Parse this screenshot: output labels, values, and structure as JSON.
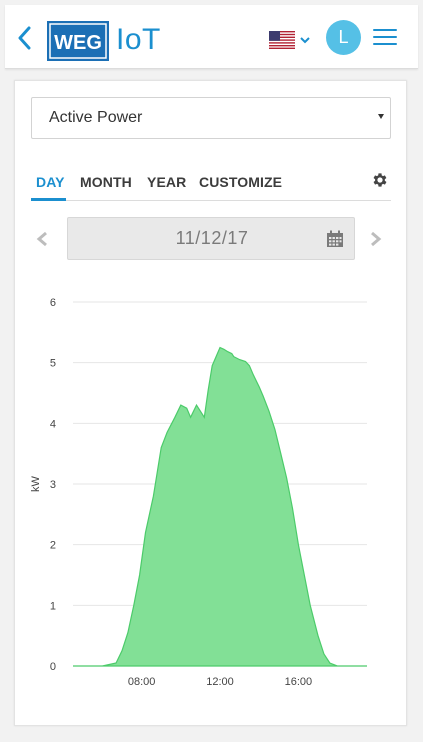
{
  "header": {
    "back_icon": "chevron-left-icon",
    "logo_text": "WEG",
    "title": "IoT",
    "language_flag": "us-flag-icon",
    "avatar_initial": "L",
    "menu_icon": "hamburger-menu-icon",
    "accent_color": "#1b8fcf",
    "avatar_color": "#55c0e6"
  },
  "metric_select": {
    "value": "Active Power"
  },
  "tabs": [
    {
      "label": "DAY",
      "active": true
    },
    {
      "label": "MONTH",
      "active": false
    },
    {
      "label": "YEAR",
      "active": false
    },
    {
      "label": "CUSTOMIZE",
      "active": false
    }
  ],
  "settings_icon": "gear-icon",
  "date_nav": {
    "date": "11/12/17",
    "prev_icon": "chevron-left-icon",
    "next_icon": "chevron-right-icon",
    "calendar_icon": "calendar-icon"
  },
  "chart_data": {
    "type": "area",
    "title": "",
    "xlabel": "",
    "ylabel": "kW",
    "ylim": [
      0,
      6
    ],
    "yticks": [
      0,
      1,
      2,
      3,
      4,
      5,
      6
    ],
    "xlim": [
      4.5,
      19.5
    ],
    "xticks": [
      {
        "value": 8,
        "label": "08:00"
      },
      {
        "value": 12,
        "label": "12:00"
      },
      {
        "value": 16,
        "label": "16:00"
      }
    ],
    "grid": true,
    "fill_color": "#82e096",
    "line_color": "#4ccb6a",
    "series": [
      {
        "x": [
          4.5,
          6.0,
          6.7,
          7.0,
          7.3,
          7.6,
          7.9,
          8.2,
          8.6,
          9.0,
          9.3,
          9.7,
          10.0,
          10.3,
          10.5,
          10.8,
          11.0,
          11.2,
          11.4,
          11.6,
          11.8,
          12.0,
          12.2,
          12.4,
          12.6,
          12.7,
          13.0,
          13.3,
          13.5,
          13.7,
          14.0,
          14.2,
          14.5,
          14.8,
          15.1,
          15.4,
          15.7,
          16.0,
          16.3,
          16.6,
          17.0,
          17.3,
          17.6,
          18.0,
          18.3,
          18.6,
          19.0,
          19.5
        ],
        "y": [
          0,
          0,
          0.05,
          0.25,
          0.55,
          1.0,
          1.5,
          2.2,
          2.8,
          3.6,
          3.85,
          4.1,
          4.3,
          4.25,
          4.1,
          4.3,
          4.2,
          4.1,
          4.55,
          4.95,
          5.1,
          5.25,
          5.22,
          5.18,
          5.15,
          5.1,
          5.05,
          5.02,
          4.95,
          4.8,
          4.6,
          4.45,
          4.2,
          3.9,
          3.5,
          3.1,
          2.6,
          2.0,
          1.5,
          1.0,
          0.5,
          0.2,
          0.05,
          0,
          0,
          0,
          0,
          0
        ]
      }
    ]
  }
}
